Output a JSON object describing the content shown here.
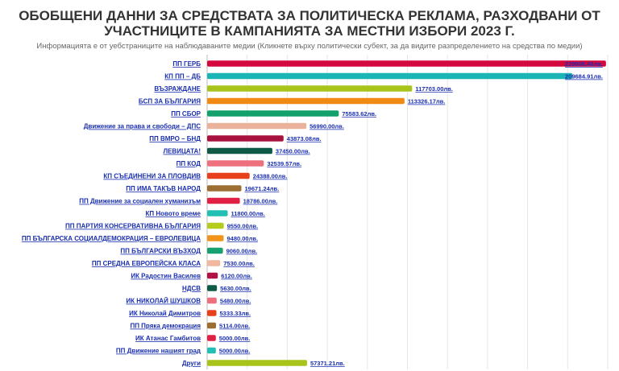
{
  "title_line1": "ОБОБЩЕНИ ДАННИ ЗА СРЕДСТВАТА ЗА ПОЛИТИЧЕСКА РЕКЛАМА, РАЗХОДВАНИ ОТ",
  "title_line2": "УЧАСТНИЦИТЕ В КАМПАНИЯТА ЗА МЕСТНИ ИЗБОРИ 2023 Г.",
  "subtitle": "Информацията е от уебстраниците на наблюдаваните медии (Кликнете върху политически субект, за да видите разпределението на средства по медии)",
  "chart_data": {
    "type": "bar",
    "orientation": "horizontal",
    "title": "ОБОБЩЕНИ ДАННИ ЗА СРЕДСТВАТА ЗА ПОЛИТИЧЕСКА РЕКЛАМА, РАЗХОДВАНИ ОТ УЧАСТНИЦИТЕ В КАМПАНИЯТА ЗА МЕСТНИ ИЗБОРИ 2023 Г.",
    "xlabel": "",
    "ylabel": "",
    "xlim": [
      0,
      230000
    ],
    "grid": true,
    "legend": "none",
    "categories": [
      "ПП ГЕРБ",
      "КП ПП – ДБ",
      "ВЪЗРАЖДАНЕ",
      "БСП ЗА БЪЛГАРИЯ",
      "ПП СБОР",
      "Движение за права и свободи – ДПС",
      "ПП ВМРО – БНД",
      "ЛЕВИЦАТА!",
      "ПП КОД",
      "КП СЪЕДИНЕНИ ЗА ПЛОВДИВ",
      "ПП ИМА ТАКЪВ НАРОД",
      "ПП Движение за социален хуманизъм",
      "КП Новото време",
      "ПП ПАРТИЯ КОНСЕРВАТИВНА БЪЛГАРИЯ",
      "ПП БЪЛГАРСКА СОЦИАЛДЕМОКРАЦИЯ – ЕВРОЛЕВИЦА",
      "ПП БЪЛГАРСКИ ВЪЗХОД",
      "ПП СРЕДНА ЕВРОПЕЙСКА КЛАСА",
      "ИК Радостин Василев",
      "НДСВ",
      "ИК НИКОЛАЙ ШУШКОВ",
      "ИК Николай Димитров",
      "ПП Пряка демокрация",
      "ИК Атанас Гамбитов",
      "ПП Движение нашият град",
      "Други"
    ],
    "values": [
      229006.4,
      209684.91,
      117703,
      113326.17,
      75583.62,
      56990,
      43873.08,
      37450,
      32539.57,
      24388,
      19671.24,
      18786,
      11800,
      9550,
      9480,
      9060,
      7530,
      6120,
      5630,
      5480,
      5333.33,
      5114,
      5000,
      5000,
      57371.21
    ],
    "value_labels": [
      "229006.40лв.",
      "209684.91лв.",
      "117703.00лв.",
      "113326.17лв.",
      "75583.62лв.",
      "56990.00лв.",
      "43873.08лв.",
      "37450.00лв.",
      "32539.57лв.",
      "24388.00лв.",
      "19671.24лв.",
      "18786.00лв.",
      "11800.00лв.",
      "9550.00лв.",
      "9480.00лв.",
      "9060.00лв.",
      "7530.00лв.",
      "6120.00лв.",
      "5630.00лв.",
      "5480.00лв.",
      "5333.33лв.",
      "5114.00лв.",
      "5000.00лв.",
      "5000.00лв.",
      "57371.21лв."
    ],
    "colors": [
      "#d5073f",
      "#1cb5b5",
      "#a8c41b",
      "#f08a12",
      "#14a06a",
      "#eab29a",
      "#a8123f",
      "#0f5a46",
      "#ee6f7e",
      "#e8401a",
      "#9c6e32",
      "#e02045",
      "#22c0b4",
      "#b4cc1e",
      "#f0941c",
      "#18a070",
      "#f0b89e",
      "#b01245",
      "#0f5a46",
      "#ee6f7e",
      "#e8401a",
      "#9c6e32",
      "#e02045",
      "#22c0b4",
      "#a8c41b"
    ]
  }
}
